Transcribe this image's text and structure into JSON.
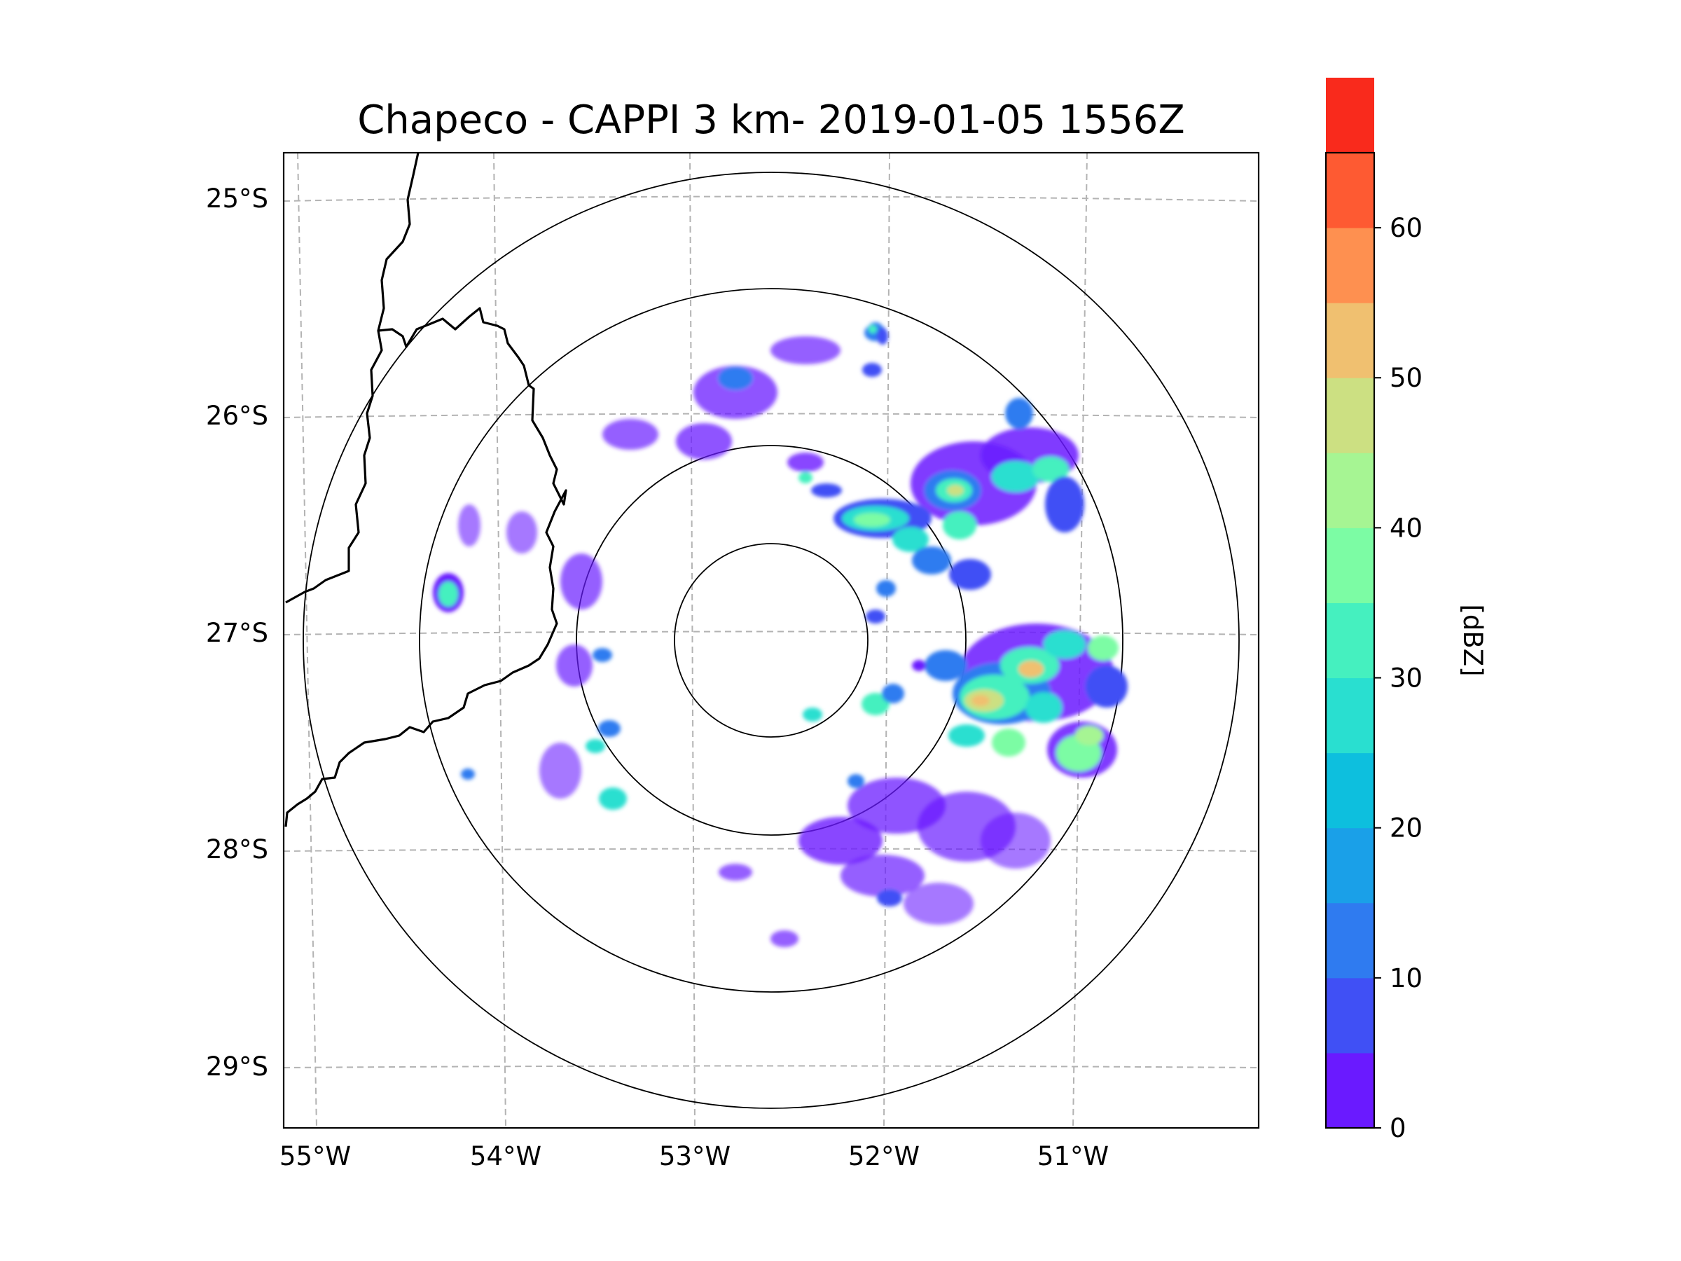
{
  "title": "Chapeco - CAPPI 3 km- 2019-01-05 1556Z",
  "map": {
    "lon_ticks": [
      "55°W",
      "54°W",
      "53°W",
      "52°W",
      "51°W"
    ],
    "lat_ticks": [
      "25°S",
      "26°S",
      "27°S",
      "28°S",
      "29°S"
    ],
    "gridline_style": "dashed",
    "range_rings": 4
  },
  "colorbar": {
    "label": "[dBZ]",
    "ticks": [
      "0",
      "10",
      "20",
      "30",
      "40",
      "50",
      "60"
    ],
    "range": [
      0,
      65
    ],
    "step": 5,
    "colors": [
      "#6a1aff",
      "#4050f5",
      "#2f7bf0",
      "#1aa0e8",
      "#0dbfde",
      "#29dfd0",
      "#45f0bf",
      "#7cfca4",
      "#a6f593",
      "#cce082",
      "#f0c070",
      "#fe9050",
      "#fe5a32",
      "#f92a1c"
    ]
  },
  "chart_data": {
    "type": "heatmap",
    "title": "Chapeco - CAPPI 3 km- 2019-01-05 1556Z",
    "field": "reflectivity",
    "units": "dBZ",
    "xlabel": "",
    "ylabel": "",
    "x_ticks": [
      "55°W",
      "54°W",
      "53°W",
      "52°W",
      "51°W"
    ],
    "y_ticks": [
      "25°S",
      "26°S",
      "27°S",
      "28°S",
      "29°S"
    ],
    "colorbar_range": [
      0,
      65
    ],
    "colorbar_ticks": [
      0,
      10,
      20,
      30,
      40,
      50,
      60
    ]
  }
}
